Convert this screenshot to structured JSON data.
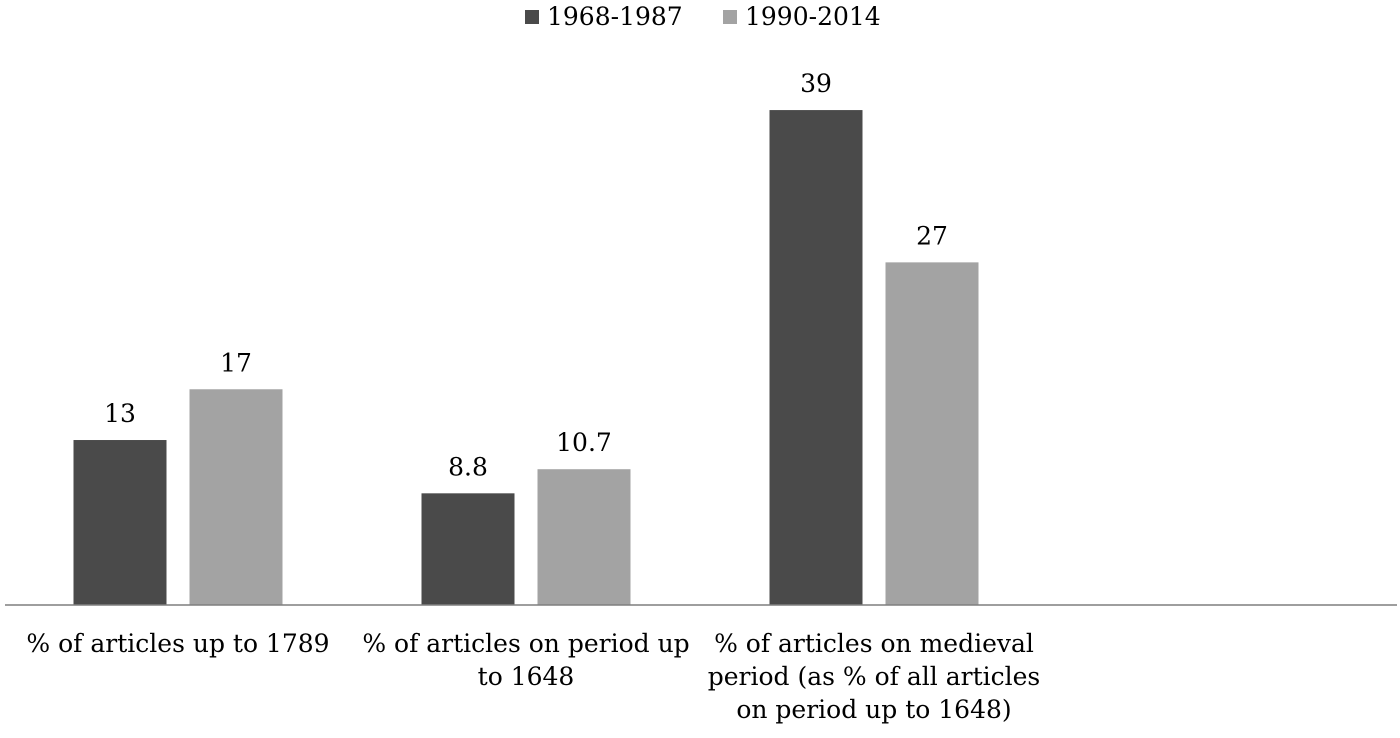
{
  "chart_data": {
    "type": "bar",
    "categories": [
      [
        "% of articles up to 1789"
      ],
      [
        "% of articles on period up",
        "to 1648"
      ],
      [
        "% of articles on medieval",
        "period (as % of all articles",
        "on period up to 1648)"
      ]
    ],
    "series": [
      {
        "name": "1968-1987",
        "color": "#4a4a4a",
        "values": [
          13,
          8.8,
          39
        ],
        "labels": [
          "13",
          "8.8",
          "39"
        ]
      },
      {
        "name": "1990-2014",
        "color": "#a3a3a3",
        "values": [
          17,
          10.7,
          27
        ],
        "labels": [
          "17",
          "10.7",
          "27"
        ]
      }
    ],
    "ylim": [
      0,
      42
    ],
    "grid": false,
    "legend": "top"
  }
}
